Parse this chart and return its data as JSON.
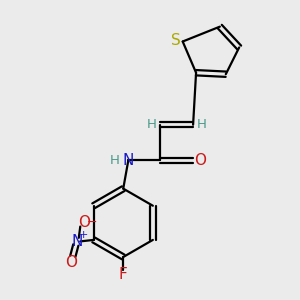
{
  "background_color": "#ebebeb",
  "atom_colors": {
    "C": "#000000",
    "H": "#4a9a8a",
    "N": "#1a1acc",
    "O": "#cc1a1a",
    "F": "#cc1a1a",
    "S": "#aaaa00",
    "bond": "#000000"
  },
  "fig_width": 3.0,
  "fig_height": 3.0,
  "dpi": 100
}
